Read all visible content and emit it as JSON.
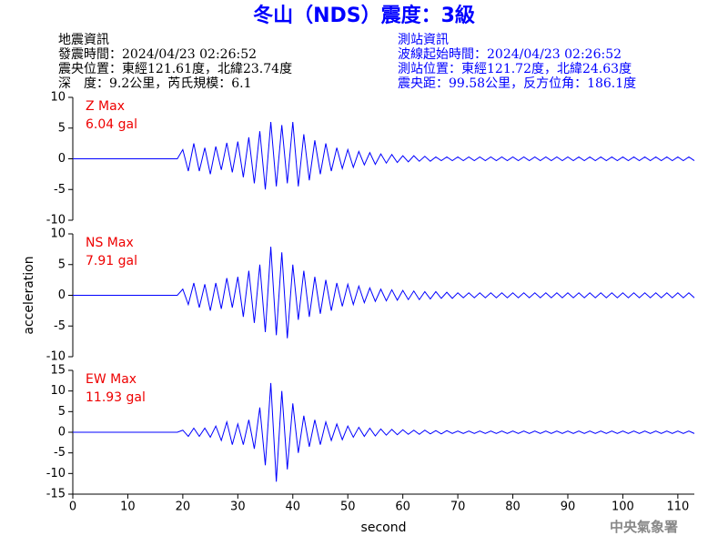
{
  "header": {
    "title": "冬山（NDS）震度：3級",
    "left": [
      "地震資訊",
      "發震時間：2024/04/23 02:26:52",
      "震央位置：東經121.61度，北緯23.74度",
      "深　度：9.2公里，芮氏規模：6.1"
    ],
    "right": [
      "測站資訊",
      "波線起始時間：2024/04/23 02:26:52",
      "測站位置：東經121.72度，北緯24.63度",
      "震央距：99.58公里，反方位角：186.1度"
    ],
    "footer": "中央氣象署"
  },
  "chart_data": [
    {
      "type": "line",
      "annotations": [
        "Z Max",
        "6.04 gal"
      ],
      "xlim": [
        0,
        113
      ],
      "ylim": [
        -10,
        10
      ],
      "yticks": [
        -10,
        -5,
        0,
        5,
        10
      ],
      "x": [
        0,
        1,
        2,
        3,
        4,
        5,
        6,
        7,
        8,
        9,
        10,
        11,
        12,
        13,
        14,
        15,
        16,
        17,
        18,
        19,
        20,
        21,
        22,
        23,
        24,
        25,
        26,
        27,
        28,
        29,
        30,
        31,
        32,
        33,
        34,
        35,
        36,
        37,
        38,
        39,
        40,
        41,
        42,
        43,
        44,
        45,
        46,
        47,
        48,
        49,
        50,
        51,
        52,
        53,
        54,
        55,
        56,
        57,
        58,
        59,
        60,
        61,
        62,
        63,
        64,
        65,
        66,
        67,
        68,
        69,
        70,
        71,
        72,
        73,
        74,
        75,
        76,
        77,
        78,
        79,
        80,
        81,
        82,
        83,
        84,
        85,
        86,
        87,
        88,
        89,
        90,
        91,
        92,
        93,
        94,
        95,
        96,
        97,
        98,
        99,
        100,
        101,
        102,
        103,
        104,
        105,
        106,
        107,
        108,
        109,
        110,
        111,
        112,
        113
      ],
      "series": [
        {
          "name": "Z",
          "color": "#0000ff",
          "values": [
            0,
            0,
            0,
            0,
            0,
            0,
            0,
            0,
            0,
            0,
            0,
            0,
            0,
            0,
            0,
            0,
            0,
            0,
            0,
            0,
            1.5,
            -2,
            2.5,
            -2,
            1.8,
            -2.5,
            2,
            -1.8,
            2.6,
            -2.2,
            2.8,
            -3,
            3.5,
            -4,
            4.5,
            -5,
            6,
            -4.5,
            5.5,
            -4,
            6,
            -4.5,
            4,
            -3.5,
            3,
            -2.5,
            2.5,
            -2,
            1.8,
            -1.6,
            1.5,
            -1.4,
            1.2,
            -1,
            1,
            -0.9,
            0.8,
            -0.7,
            0.7,
            -0.6,
            0.5,
            -0.5,
            0.5,
            -0.4,
            0.4,
            -0.4,
            0.3,
            -0.3,
            0.3,
            -0.3,
            0.3,
            -0.3,
            0.3,
            -0.3,
            0.3,
            -0.3,
            0.3,
            -0.3,
            0.3,
            -0.3,
            0.3,
            -0.3,
            0.3,
            -0.3,
            0.3,
            -0.3,
            0.3,
            -0.3,
            0.3,
            -0.3,
            0.3,
            -0.3,
            0.3,
            -0.3,
            0.3,
            -0.3,
            0.3,
            -0.3,
            0.3,
            -0.3,
            0.3,
            -0.3,
            0.3,
            -0.3,
            0.3,
            -0.3,
            0.3,
            -0.3,
            0.3,
            -0.3,
            0.3,
            -0.3,
            0.3,
            -0.3
          ]
        }
      ]
    },
    {
      "type": "line",
      "annotations": [
        "NS Max",
        "7.91 gal"
      ],
      "ylabel": "acceleration",
      "xlim": [
        0,
        113
      ],
      "ylim": [
        -10,
        10
      ],
      "yticks": [
        -10,
        -5,
        0,
        5,
        10
      ],
      "x": [
        0,
        1,
        2,
        3,
        4,
        5,
        6,
        7,
        8,
        9,
        10,
        11,
        12,
        13,
        14,
        15,
        16,
        17,
        18,
        19,
        20,
        21,
        22,
        23,
        24,
        25,
        26,
        27,
        28,
        29,
        30,
        31,
        32,
        33,
        34,
        35,
        36,
        37,
        38,
        39,
        40,
        41,
        42,
        43,
        44,
        45,
        46,
        47,
        48,
        49,
        50,
        51,
        52,
        53,
        54,
        55,
        56,
        57,
        58,
        59,
        60,
        61,
        62,
        63,
        64,
        65,
        66,
        67,
        68,
        69,
        70,
        71,
        72,
        73,
        74,
        75,
        76,
        77,
        78,
        79,
        80,
        81,
        82,
        83,
        84,
        85,
        86,
        87,
        88,
        89,
        90,
        91,
        92,
        93,
        94,
        95,
        96,
        97,
        98,
        99,
        100,
        101,
        102,
        103,
        104,
        105,
        106,
        107,
        108,
        109,
        110,
        111,
        112,
        113
      ],
      "series": [
        {
          "name": "NS",
          "color": "#0000ff",
          "values": [
            0,
            0,
            0,
            0,
            0,
            0,
            0,
            0,
            0,
            0,
            0,
            0,
            0,
            0,
            0,
            0,
            0,
            0,
            0,
            0,
            1,
            -1.5,
            2,
            -2,
            1.8,
            -2.5,
            2,
            -2.2,
            2.8,
            -2,
            3,
            -3.5,
            4,
            -4.5,
            5,
            -6,
            7.9,
            -6.5,
            7,
            -7,
            5,
            -4,
            4,
            -3.5,
            3,
            -3,
            2.5,
            -2.5,
            2,
            -1.8,
            1.8,
            -1.5,
            1.5,
            -1.2,
            1.2,
            -1,
            1,
            -0.9,
            0.9,
            -0.8,
            0.8,
            -0.7,
            0.7,
            -0.7,
            0.6,
            -0.6,
            0.6,
            -0.5,
            0.5,
            -0.5,
            0.4,
            -0.4,
            0.4,
            -0.4,
            0.4,
            -0.4,
            0.4,
            -0.4,
            0.4,
            -0.4,
            0.4,
            -0.4,
            0.4,
            -0.4,
            0.4,
            -0.4,
            0.4,
            -0.4,
            0.4,
            -0.4,
            0.4,
            -0.4,
            0.4,
            -0.4,
            0.4,
            -0.4,
            0.4,
            -0.4,
            0.4,
            -0.4,
            0.4,
            -0.4,
            0.4,
            -0.4,
            0.4,
            -0.4,
            0.4,
            -0.4,
            0.4,
            -0.4,
            0.4,
            -0.4,
            0.4,
            -0.4
          ]
        }
      ]
    },
    {
      "type": "line",
      "annotations": [
        "EW Max",
        "11.93 gal"
      ],
      "xlabel": "second",
      "xlim": [
        0,
        113
      ],
      "ylim": [
        -15,
        15
      ],
      "yticks": [
        -15,
        -10,
        -5,
        0,
        5,
        10,
        15
      ],
      "xticks": [
        0,
        10,
        20,
        30,
        40,
        50,
        60,
        70,
        80,
        90,
        100,
        110
      ],
      "x": [
        0,
        1,
        2,
        3,
        4,
        5,
        6,
        7,
        8,
        9,
        10,
        11,
        12,
        13,
        14,
        15,
        16,
        17,
        18,
        19,
        20,
        21,
        22,
        23,
        24,
        25,
        26,
        27,
        28,
        29,
        30,
        31,
        32,
        33,
        34,
        35,
        36,
        37,
        38,
        39,
        40,
        41,
        42,
        43,
        44,
        45,
        46,
        47,
        48,
        49,
        50,
        51,
        52,
        53,
        54,
        55,
        56,
        57,
        58,
        59,
        60,
        61,
        62,
        63,
        64,
        65,
        66,
        67,
        68,
        69,
        70,
        71,
        72,
        73,
        74,
        75,
        76,
        77,
        78,
        79,
        80,
        81,
        82,
        83,
        84,
        85,
        86,
        87,
        88,
        89,
        90,
        91,
        92,
        93,
        94,
        95,
        96,
        97,
        98,
        99,
        100,
        101,
        102,
        103,
        104,
        105,
        106,
        107,
        108,
        109,
        110,
        111,
        112,
        113
      ],
      "series": [
        {
          "name": "EW",
          "color": "#0000ff",
          "values": [
            0,
            0,
            0,
            0,
            0,
            0,
            0,
            0,
            0,
            0,
            0,
            0,
            0,
            0,
            0,
            0,
            0,
            0,
            0,
            0,
            0.5,
            -1,
            1,
            -1,
            1,
            -1.2,
            1.5,
            -2,
            2.5,
            -3,
            2,
            -3,
            3,
            -4,
            6,
            -8,
            11.93,
            -12,
            10,
            -9,
            7,
            -5,
            4,
            -3.5,
            3,
            -3,
            2.5,
            -2,
            2,
            -1.8,
            1.5,
            -1.2,
            1.2,
            -1,
            1,
            -0.9,
            0.8,
            -0.7,
            0.7,
            -0.6,
            0.6,
            -0.5,
            0.5,
            -0.5,
            0.5,
            -0.4,
            0.4,
            -0.4,
            0.4,
            -0.3,
            0.3,
            -0.3,
            0.3,
            -0.3,
            0.3,
            -0.3,
            0.3,
            -0.3,
            0.3,
            -0.3,
            0.3,
            -0.3,
            0.3,
            -0.3,
            0.3,
            -0.3,
            0.3,
            -0.3,
            0.3,
            -0.3,
            0.3,
            -0.3,
            0.3,
            -0.3,
            0.3,
            -0.3,
            0.3,
            -0.3,
            0.3,
            -0.3,
            0.3,
            -0.3,
            0.3,
            -0.3,
            0.3,
            -0.3,
            0.3,
            -0.3,
            0.3,
            -0.3,
            0.3,
            -0.3,
            0.3,
            -0.3
          ]
        }
      ]
    }
  ]
}
